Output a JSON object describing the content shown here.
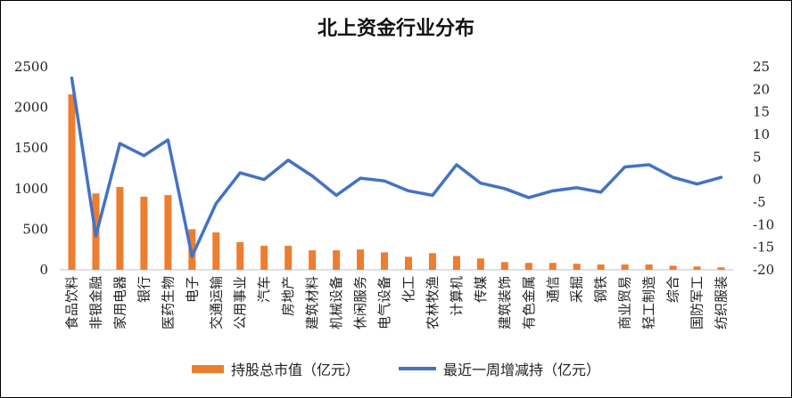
{
  "chart_data": {
    "type": "bar",
    "title": "北上资金行业分布",
    "categories": [
      "食品饮料",
      "非银金融",
      "家用电器",
      "银行",
      "医药生物",
      "电子",
      "交通运输",
      "公用事业",
      "汽车",
      "房地产",
      "建筑材料",
      "机械设备",
      "休闲服务",
      "电气设备",
      "化工",
      "农林牧渔",
      "计算机",
      "传媒",
      "建筑装饰",
      "有色金属",
      "通信",
      "采掘",
      "钢铁",
      "商业贸易",
      "轻工制造",
      "综合",
      "国防军工",
      "纺织服装"
    ],
    "series": [
      {
        "name": "持股总市值（亿元）",
        "type": "bar",
        "axis": "left",
        "color": "#ED7D31",
        "values": [
          2160,
          940,
          1020,
          900,
          920,
          500,
          460,
          340,
          295,
          295,
          240,
          240,
          250,
          215,
          160,
          205,
          170,
          140,
          95,
          85,
          85,
          75,
          65,
          65,
          65,
          50,
          40,
          30
        ]
      },
      {
        "name": "最近一周增减持（亿元）",
        "type": "line",
        "axis": "right",
        "color": "#4472C4",
        "values": [
          22.5,
          -12.5,
          8,
          5.3,
          8.8,
          -17,
          -5.3,
          1.5,
          0,
          4.3,
          0.8,
          -3.5,
          0.3,
          -0.3,
          -2.5,
          -3.5,
          3.3,
          -0.8,
          -2,
          -4,
          -2.5,
          -1.8,
          -2.8,
          2.8,
          3.3,
          0.5,
          -1,
          0.5
        ]
      }
    ],
    "ylim_left": [
      0,
      2500
    ],
    "yticks_left": [
      "0",
      "500",
      "1000",
      "1500",
      "2000",
      "2500"
    ],
    "ylim_right": [
      -20,
      25
    ],
    "yticks_right": [
      "-20",
      "-15",
      "-10",
      "-5",
      "0",
      "5",
      "10",
      "15",
      "20",
      "25"
    ],
    "grid": false,
    "legend": "bottom"
  }
}
